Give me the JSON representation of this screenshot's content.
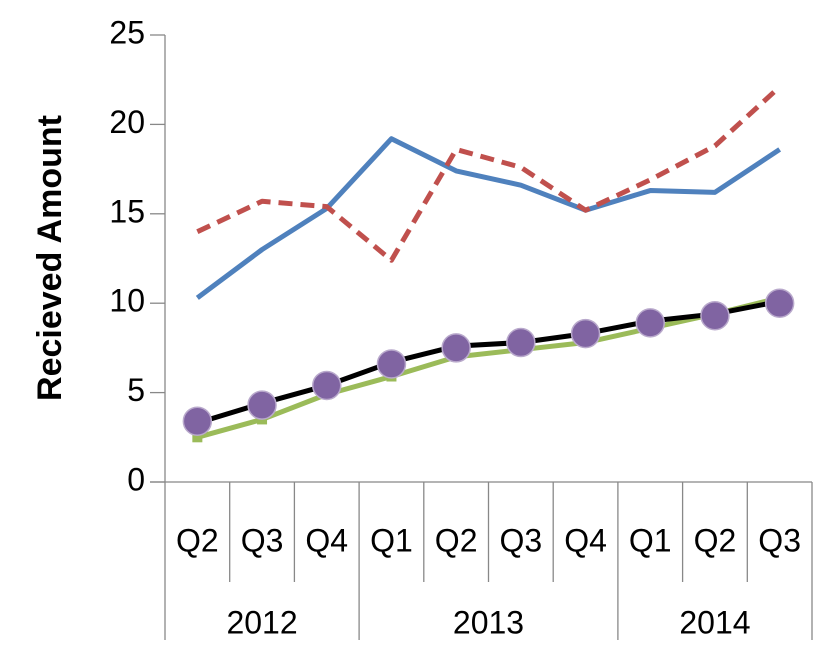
{
  "chart_data": {
    "type": "line",
    "y_label": "Recieved Amount",
    "categories": [
      "Q2",
      "Q3",
      "Q4",
      "Q1",
      "Q2",
      "Q3",
      "Q4",
      "Q1",
      "Q2",
      "Q3"
    ],
    "category_groups": [
      {
        "label": "2012",
        "count": 3
      },
      {
        "label": "2013",
        "count": 4
      },
      {
        "label": "2014",
        "count": 3
      }
    ],
    "series": [
      {
        "color": "#4f81bd",
        "dash": false,
        "marker": "none",
        "values": [
          10.3,
          13.0,
          15.3,
          19.2,
          17.4,
          16.6,
          15.2,
          16.3,
          16.2,
          18.6
        ]
      },
      {
        "color": "#c0504d",
        "dash": true,
        "marker": "none",
        "values": [
          14.0,
          15.7,
          15.4,
          12.4,
          18.6,
          17.6,
          15.2,
          16.9,
          18.8,
          22.1
        ]
      },
      {
        "color": "#9bbb59",
        "dash": false,
        "marker": "square",
        "values": [
          2.5,
          3.5,
          4.9,
          5.9,
          7.0,
          7.4,
          7.8,
          8.6,
          9.4,
          10.3
        ]
      },
      {
        "color": "#000000",
        "dash": false,
        "marker": "none",
        "values": [
          3.3,
          4.4,
          5.4,
          6.7,
          7.6,
          7.8,
          8.3,
          9.0,
          9.4,
          10.1
        ]
      },
      {
        "color": "#8064a2",
        "dash": false,
        "marker": "circle",
        "line": false,
        "values": [
          3.4,
          4.3,
          5.4,
          6.6,
          7.5,
          7.8,
          8.3,
          8.9,
          9.3,
          10.0
        ]
      }
    ],
    "ylim": [
      0,
      25
    ],
    "yticks": [
      0,
      5,
      10,
      15,
      20,
      25
    ],
    "grid": false
  }
}
